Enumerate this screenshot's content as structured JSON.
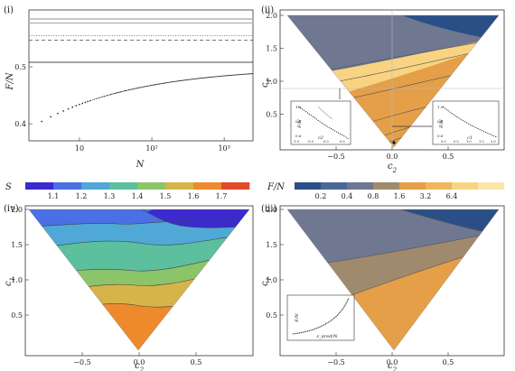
{
  "chart_data": [
    {
      "id": "panel-i",
      "type": "scatter",
      "panel_label": "(i)",
      "xlabel": "N",
      "ylabel": "F/N",
      "xscale": "log",
      "xlim": [
        2,
        2500
      ],
      "ylim": [
        0.37,
        0.6
      ],
      "x_ticks": [
        {
          "v": 10,
          "label": "10"
        },
        {
          "v": 100,
          "label": "10²"
        },
        {
          "v": 1000,
          "label": "10³"
        }
      ],
      "y_ticks": [
        {
          "v": 0.4,
          "label": "0.4"
        },
        {
          "v": 0.5,
          "label": "0.5"
        }
      ],
      "hlines": [
        {
          "y": 0.584,
          "style": "thick-gray"
        },
        {
          "y": 0.577,
          "style": "thick-gray"
        },
        {
          "y": 0.555,
          "style": "dotted"
        },
        {
          "y": 0.547,
          "style": "dashed"
        },
        {
          "y": 0.508,
          "style": "solid"
        }
      ],
      "series": [
        {
          "curve": "F/N ≈ 0.5 - 0.135·N^(-0.31)",
          "x_range": [
            3,
            2500
          ]
        }
      ]
    },
    {
      "id": "panel-ii",
      "type": "contour",
      "panel_label": "(ii)",
      "xlabel": "c2",
      "ylabel": "c1",
      "xlim": [
        -1,
        1
      ],
      "ylim": [
        0,
        2
      ],
      "x_ticks": [
        {
          "v": -0.5,
          "label": "−0.5"
        },
        {
          "v": 0,
          "label": "0.0"
        },
        {
          "v": 0.5,
          "label": "0.5"
        }
      ],
      "y_ticks": [
        {
          "v": 0.5,
          "label": "0.5"
        },
        {
          "v": 1.0,
          "label": "1.0"
        },
        {
          "v": 1.5,
          "label": "1.5"
        },
        {
          "v": 2.0,
          "label": "2.0"
        }
      ],
      "domain": "triangle with vertices (-0.9,2), (0.95,2), (0.03,0.15)",
      "guides": {
        "vline_c2": 0.0,
        "hline_c1": 1.0,
        "dot": [
          0.02,
          0.25
        ]
      },
      "levels": [
        0.2,
        0.4,
        0.8,
        1.6,
        3.2
      ],
      "insets": [
        {
          "xlabel": "c2",
          "ylabel": "F/N",
          "y_ticks": [
            "1.0",
            "0.8",
            "0.6"
          ],
          "x_ticks": [
            "-1.0",
            "-0.5",
            "0.0",
            "0.5"
          ]
        },
        {
          "xlabel": "c1",
          "ylabel": "F/N",
          "y_ticks": [
            "1.0",
            "0.8",
            "0.6"
          ],
          "x_ticks": [
            "0.0",
            "0.5",
            "1.0",
            "1.5",
            "2.0"
          ]
        }
      ]
    },
    {
      "id": "panel-iii",
      "type": "contour",
      "panel_label": "(iii)",
      "xlabel": "c2",
      "ylabel": "c1",
      "xlim": [
        -1,
        1
      ],
      "ylim": [
        0,
        2
      ],
      "x_ticks": [
        {
          "v": -0.5,
          "label": "−0.5"
        },
        {
          "v": 0,
          "label": "0.0"
        },
        {
          "v": 0.5,
          "label": "0.5"
        }
      ],
      "y_ticks": [
        {
          "v": 0.5,
          "label": "0.5"
        },
        {
          "v": 1.0,
          "label": "1.0"
        },
        {
          "v": 1.5,
          "label": "1.5"
        },
        {
          "v": 2.0,
          "label": "2.0"
        }
      ],
      "levels": [
        0.4,
        0.8,
        1.6
      ],
      "inset": {
        "xlabel": "ε_pred/N",
        "ylabel": "F/N"
      }
    },
    {
      "id": "panel-iv",
      "type": "contour",
      "panel_label": "(iv)",
      "xlabel": "c2",
      "ylabel": "c1",
      "xlim": [
        -1,
        1
      ],
      "ylim": [
        0,
        2
      ],
      "x_ticks": [
        {
          "v": -0.5,
          "label": "−0.5"
        },
        {
          "v": 0,
          "label": "0.0"
        },
        {
          "v": 0.5,
          "label": "0.5"
        }
      ],
      "y_ticks": [
        {
          "v": 0.5,
          "label": "0.5"
        },
        {
          "v": 1.0,
          "label": "1.0"
        },
        {
          "v": 1.5,
          "label": "1.5"
        },
        {
          "v": 2.0,
          "label": "2.0"
        }
      ],
      "colorbar_ref": "S"
    }
  ],
  "legends": {
    "S": {
      "symbol": "S",
      "ticks": [
        "1.1",
        "1.2",
        "1.3",
        "1.4",
        "1.5",
        "1.6",
        "1.7"
      ],
      "colors": [
        "#3a2ad0",
        "#4a70e6",
        "#4fa8d6",
        "#5cbf9e",
        "#8cc46a",
        "#d6b44a",
        "#ef8a2c",
        "#e04a2a"
      ]
    },
    "FN": {
      "symbol": "F/N",
      "ticks": [
        "0.2",
        "0.4",
        "0.8",
        "1.6",
        "3.2",
        "6.4"
      ],
      "colors": [
        "#2a4f86",
        "#4a6896",
        "#6f7791",
        "#a08a6e",
        "#e49f48",
        "#f0b65c",
        "#f8d482",
        "#fbe6ae"
      ]
    }
  }
}
